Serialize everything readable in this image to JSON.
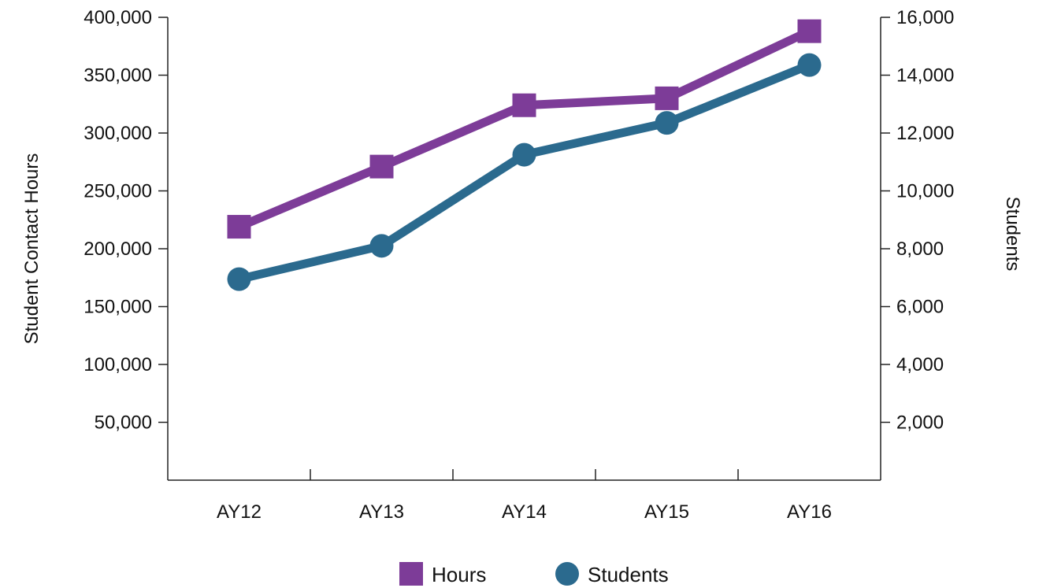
{
  "chart_data": {
    "type": "line",
    "categories": [
      "AY12",
      "AY13",
      "AY14",
      "AY15",
      "AY16"
    ],
    "y_left": {
      "label": "Student Contact Hours",
      "ylim": [
        0,
        400000
      ],
      "ticks": [
        50000,
        100000,
        150000,
        200000,
        250000,
        300000,
        350000,
        400000
      ],
      "tick_labels": [
        "50,000",
        "100,000",
        "150,000",
        "200,000",
        "250,000",
        "300,000",
        "350,000",
        "400,000"
      ]
    },
    "y_right": {
      "label": "Students",
      "ylim": [
        0,
        16000
      ],
      "ticks": [
        2000,
        4000,
        6000,
        8000,
        10000,
        12000,
        14000,
        16000
      ],
      "tick_labels": [
        "2,000",
        "4,000",
        "6,000",
        "8,000",
        "10,000",
        "12,000",
        "14,000",
        "16,000"
      ]
    },
    "series": [
      {
        "name": "Hours",
        "axis": "left",
        "marker": "square",
        "color": "#7d3c98",
        "values": [
          219000,
          271000,
          324000,
          330000,
          388000
        ]
      },
      {
        "name": "Students",
        "axis": "right",
        "marker": "circle",
        "color": "#2b6a8e",
        "values": [
          6950,
          8100,
          11250,
          12350,
          14350
        ]
      }
    ],
    "grid": false,
    "legend_position": "bottom"
  }
}
